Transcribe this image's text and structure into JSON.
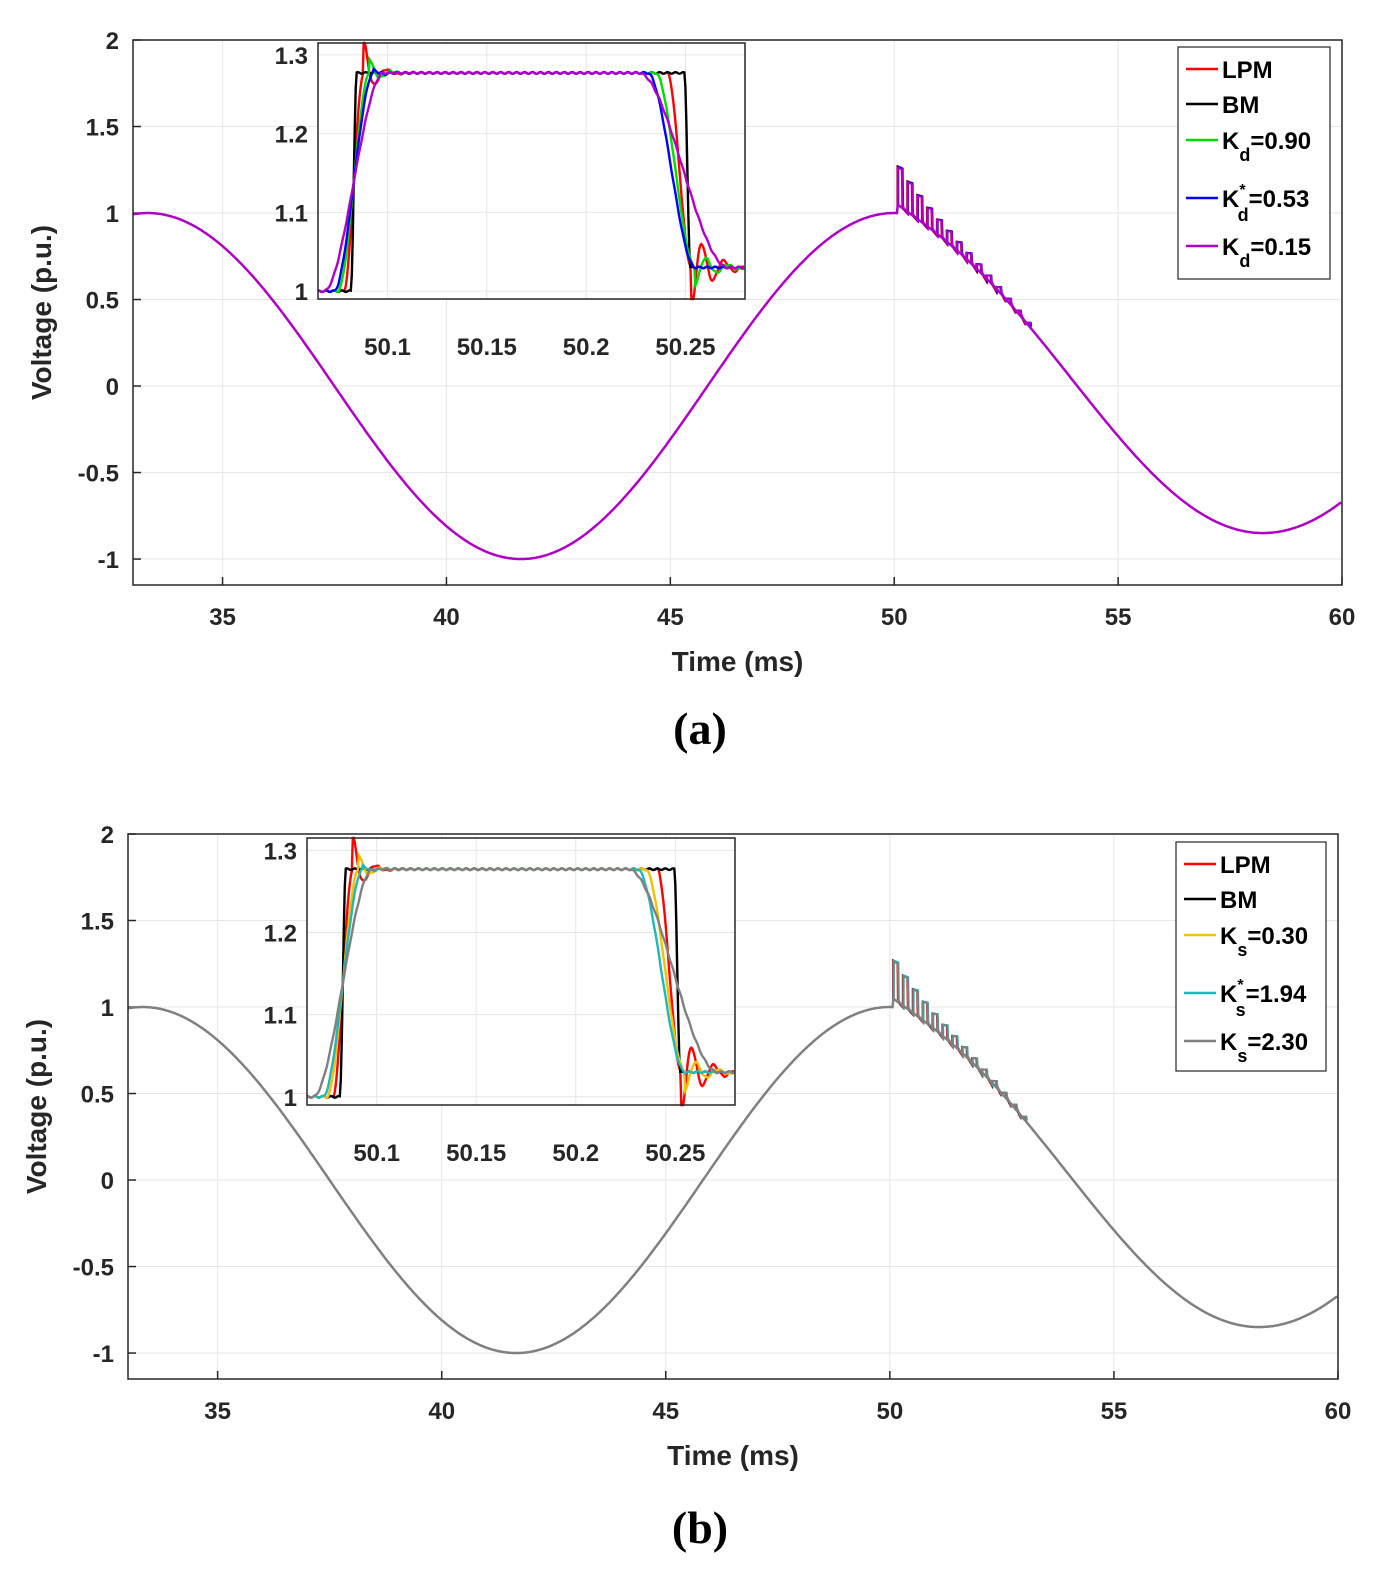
{
  "chart_data": [
    {
      "type": "line",
      "caption": "(a)",
      "xlabel": "Time (ms)",
      "ylabel": "Voltage (p.u.)",
      "xlim": [
        33,
        60
      ],
      "ylim": [
        -1.15,
        2
      ],
      "xticks": [
        "35",
        "40",
        "45",
        "50",
        "55",
        "60"
      ],
      "yticks": [
        "2",
        "1.5",
        "1",
        "0.5",
        "0",
        "-0.5",
        "-1"
      ],
      "grid": true,
      "legend_position": "top-right",
      "main_waveform": {
        "sine_amplitude": 1.0,
        "frequency_hz": 60,
        "fault_time_ms": 50.08,
        "post_fault_peak": 1.28,
        "post_fault_min": -0.85,
        "post_fault_min_time_ms": 58.3
      },
      "series": [
        {
          "name": "LPM",
          "sub": "",
          "sup": "",
          "eq": "",
          "color": "#ff0000"
        },
        {
          "name": "BM",
          "sub": "",
          "sup": "",
          "eq": "",
          "color": "#000000"
        },
        {
          "name": "K",
          "sub": "d",
          "sup": "",
          "eq": "=0.90",
          "color": "#00dd00"
        },
        {
          "name": "K",
          "sub": "d",
          "sup": "*",
          "eq": "=0.53",
          "color": "#0000ff"
        },
        {
          "name": "K",
          "sub": "d",
          "sup": "",
          "eq": "=0.15",
          "color": "#b000c8"
        }
      ],
      "inset": {
        "xlim": [
          50.065,
          50.28
        ],
        "ylim": [
          0.99,
          1.315
        ],
        "xticks": [
          "50.1",
          "50.15",
          "50.2",
          "50.25"
        ],
        "yticks": [
          "1.3",
          "1.2",
          "1.1",
          "1"
        ],
        "pulse_base": 1.0,
        "pulse_top": 1.277,
        "pulse_end_level": 1.03,
        "rise_time_ms": 50.083,
        "fall_time_ms": 50.245,
        "lpm_overshoot_peak": 1.322,
        "lpm_undershoot_min": 0.99
      }
    },
    {
      "type": "line",
      "caption": "(b)",
      "xlabel": "Time (ms)",
      "ylabel": "Voltage (p.u.)",
      "xlim": [
        33,
        60
      ],
      "ylim": [
        -1.15,
        2
      ],
      "xticks": [
        "35",
        "40",
        "45",
        "50",
        "55",
        "60"
      ],
      "yticks": [
        "2",
        "1.5",
        "1",
        "0.5",
        "0",
        "-0.5",
        "-1"
      ],
      "grid": true,
      "legend_position": "top-right",
      "main_waveform": {
        "sine_amplitude": 1.0,
        "frequency_hz": 60,
        "fault_time_ms": 50.08,
        "post_fault_peak": 1.28,
        "post_fault_min": -0.85,
        "post_fault_min_time_ms": 58.3
      },
      "series": [
        {
          "name": "LPM",
          "sub": "",
          "sup": "",
          "eq": "",
          "color": "#ff0000"
        },
        {
          "name": "BM",
          "sub": "",
          "sup": "",
          "eq": "",
          "color": "#000000"
        },
        {
          "name": "K",
          "sub": "s",
          "sup": "",
          "eq": "=0.30",
          "color": "#f2c200"
        },
        {
          "name": "K",
          "sub": "s",
          "sup": "*",
          "eq": "=1.94",
          "color": "#1fb8b8"
        },
        {
          "name": "K",
          "sub": "s",
          "sup": "",
          "eq": "=2.30",
          "color": "#808080"
        }
      ],
      "inset": {
        "xlim": [
          50.065,
          50.28
        ],
        "ylim": [
          0.99,
          1.315
        ],
        "xticks": [
          "50.1",
          "50.15",
          "50.2",
          "50.25"
        ],
        "yticks": [
          "1.3",
          "1.2",
          "1.1",
          "1"
        ],
        "pulse_base": 1.0,
        "pulse_top": 1.277,
        "pulse_end_level": 1.03,
        "rise_time_ms": 50.083,
        "fall_time_ms": 50.245,
        "lpm_overshoot_peak": 1.322,
        "lpm_undershoot_min": 0.985
      }
    }
  ]
}
